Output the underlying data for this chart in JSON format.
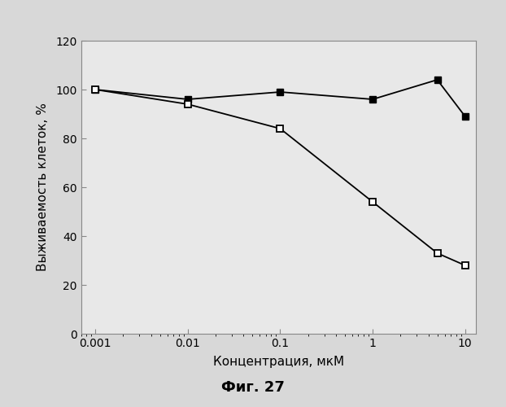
{
  "series1_x": [
    0.001,
    0.01,
    0.1,
    1,
    5,
    10
  ],
  "series1_y": [
    100,
    96,
    99,
    96,
    104,
    89
  ],
  "series2_x": [
    0.001,
    0.01,
    0.1,
    1,
    5,
    10
  ],
  "series2_y": [
    100,
    94,
    84,
    54,
    33,
    28
  ],
  "xlabel": "Концентрация, мкМ",
  "ylabel": "Выживаемость клеток, %",
  "caption": "Фиг. 27",
  "ylim": [
    0,
    120
  ],
  "yticks": [
    0,
    20,
    40,
    60,
    80,
    100,
    120
  ],
  "xticks": [
    0.001,
    0.01,
    0.1,
    1,
    10
  ],
  "xtick_labels": [
    "0.001",
    "0.01",
    "0.1",
    "1",
    "10"
  ],
  "figure_facecolor": "#d8d8d8",
  "axes_facecolor": "#e8e8e8",
  "line_color": "#000000",
  "spine_color": "#888888",
  "tick_color": "#444444"
}
